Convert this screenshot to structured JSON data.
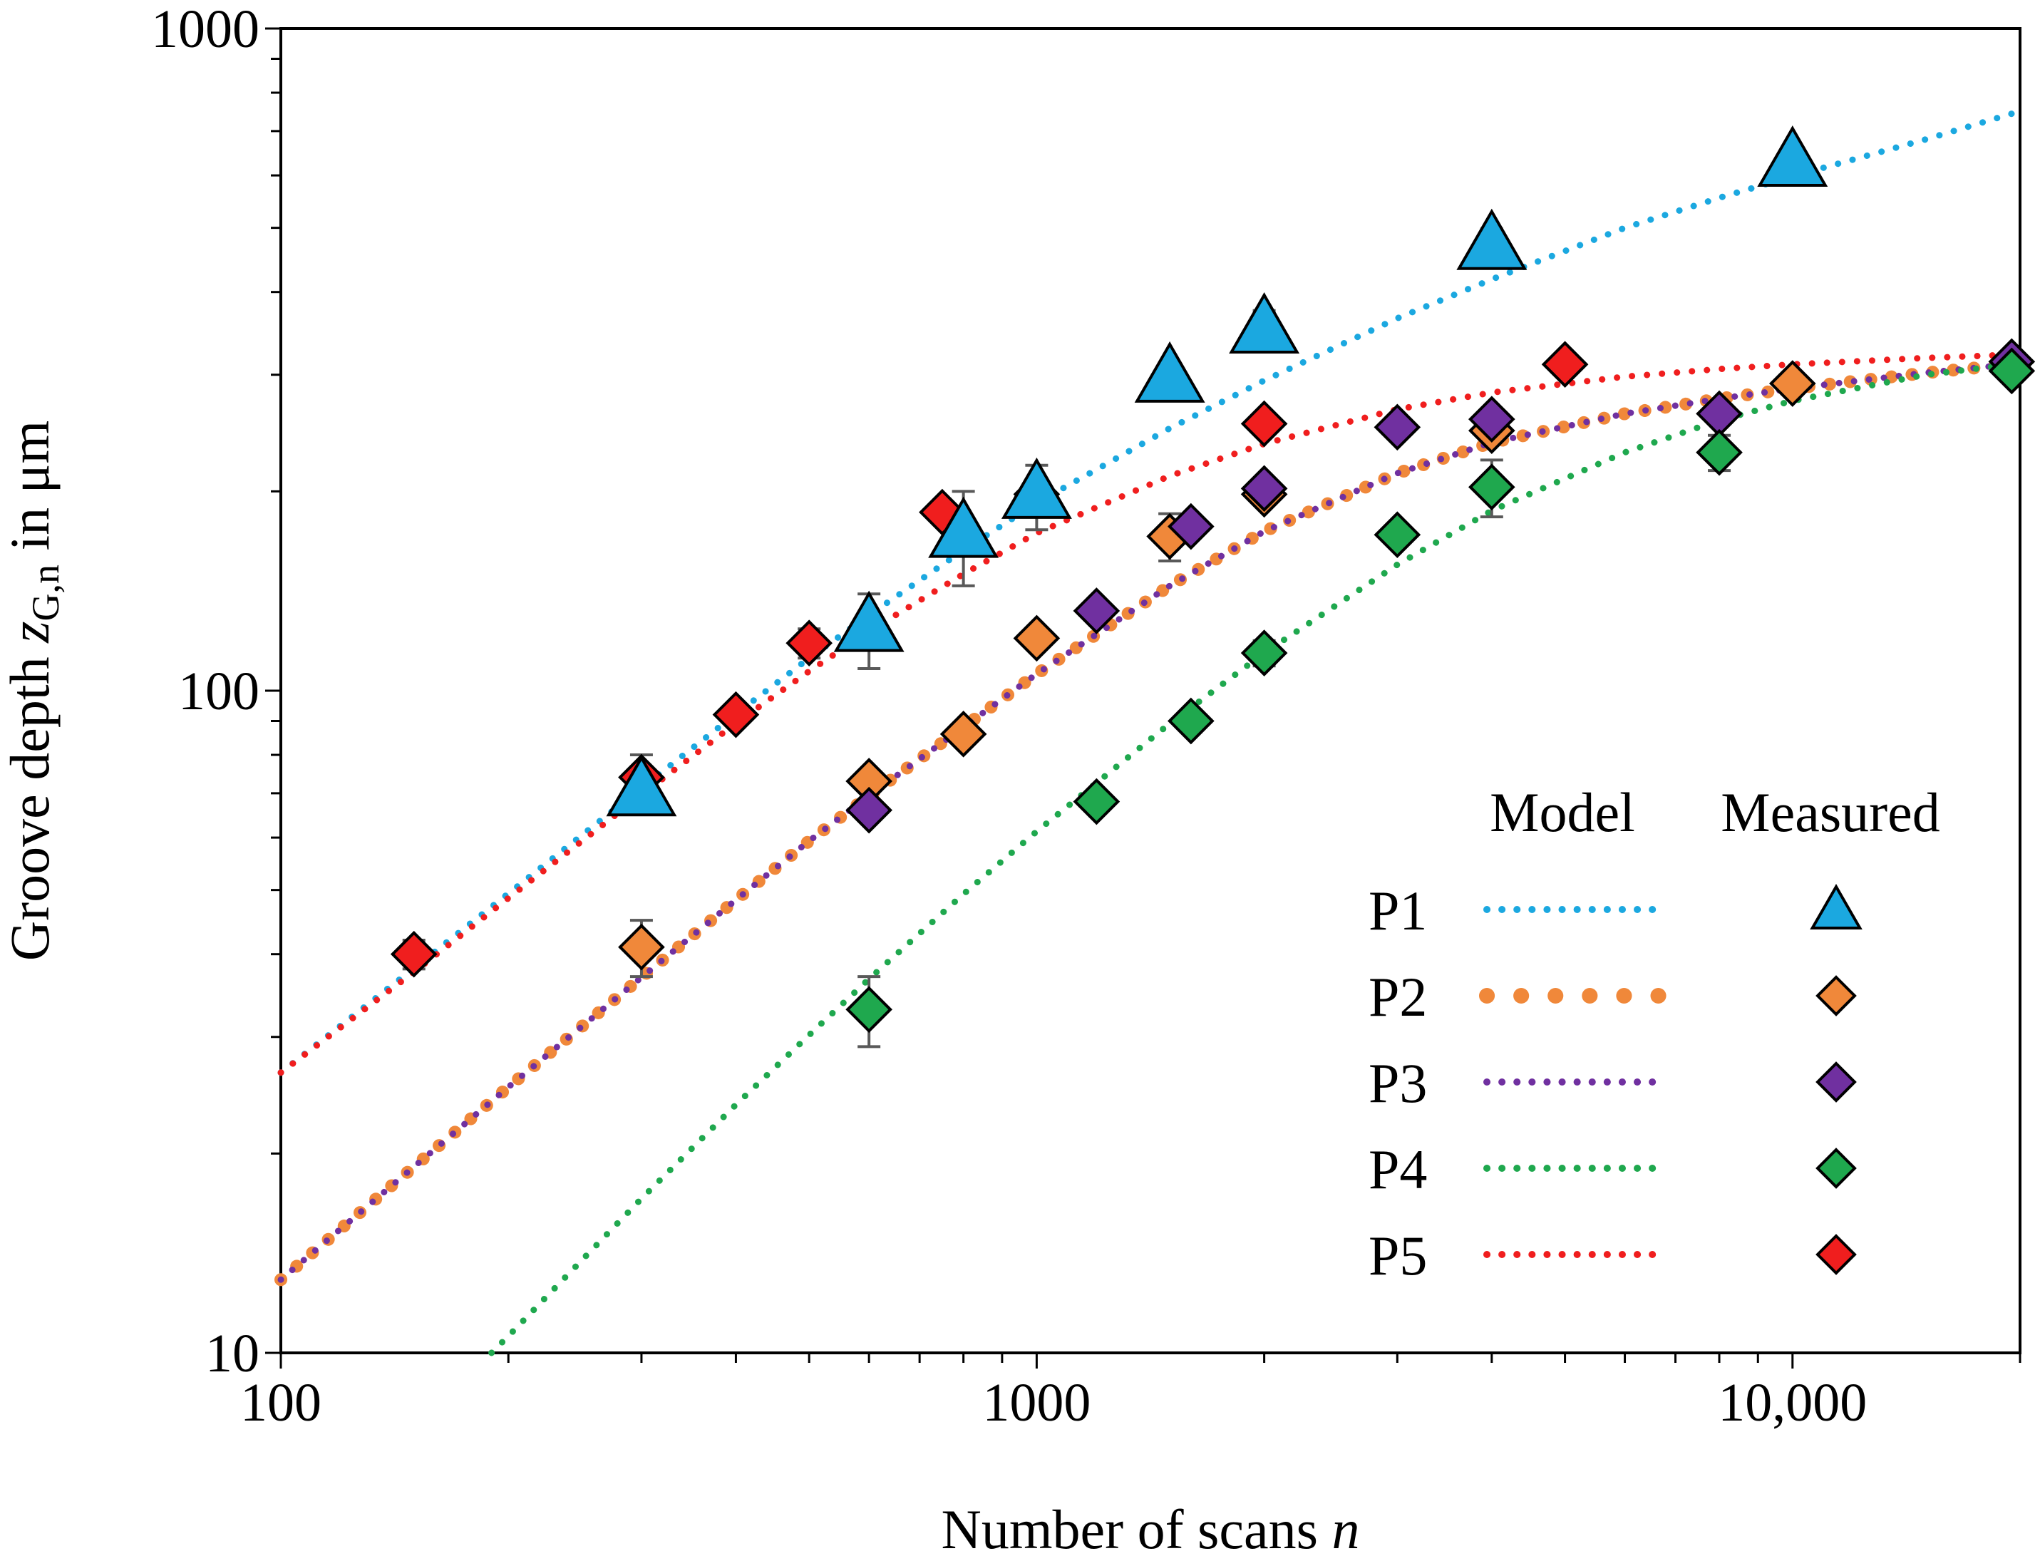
{
  "chart_data": {
    "type": "scatter",
    "title": "",
    "xlabel": "Number of scans n",
    "ylabel": "Groove depth z_G,n in μm",
    "xlabel_parts": {
      "text": "Number of scans ",
      "var": "n"
    },
    "ylabel_parts": {
      "text": "Groove depth ",
      "var": "z",
      "sub": "G,n",
      "unit": " in μm"
    },
    "x_scale": "log",
    "y_scale": "log",
    "xlim": [
      100,
      20000
    ],
    "ylim": [
      10,
      1000
    ],
    "x_ticks": [
      {
        "value": 100,
        "label": "100"
      },
      {
        "value": 1000,
        "label": "1000"
      },
      {
        "value": 10000,
        "label": "10,000"
      }
    ],
    "y_ticks": [
      {
        "value": 10,
        "label": "10"
      },
      {
        "value": 100,
        "label": "100"
      },
      {
        "value": 1000,
        "label": "1000"
      }
    ],
    "grid": false,
    "legend": {
      "placement": "bottom-right",
      "model_header": "Model",
      "measured_header": "Measured"
    },
    "series": [
      {
        "name": "P1",
        "color": "#1BA8E0",
        "marker": "triangle",
        "model_dot": "small",
        "model": [
          [
            100,
            26.5
          ],
          [
            150,
            38.1
          ],
          [
            200,
            49.4
          ],
          [
            300,
            71.3
          ],
          [
            400,
            92.2
          ],
          [
            500,
            112
          ],
          [
            600,
            130
          ],
          [
            800,
            163
          ],
          [
            1000,
            192
          ],
          [
            1500,
            249
          ],
          [
            2000,
            294
          ],
          [
            3000,
            365
          ],
          [
            4000,
            418
          ],
          [
            6000,
            500
          ],
          [
            8000,
            555
          ],
          [
            10000,
            598
          ],
          [
            15000,
            680
          ],
          [
            20000,
            750
          ]
        ],
        "measured": [
          {
            "x": 300,
            "y": 70,
            "err": 0
          },
          {
            "x": 600,
            "y": 124,
            "err": 16
          },
          {
            "x": 800,
            "y": 172,
            "err": 28
          },
          {
            "x": 1000,
            "y": 197,
            "err": 22
          },
          {
            "x": 1500,
            "y": 295,
            "err": 0
          },
          {
            "x": 2000,
            "y": 350,
            "err": 25
          },
          {
            "x": 4000,
            "y": 468,
            "err": 30
          },
          {
            "x": 10000,
            "y": 625,
            "err": 0
          }
        ]
      },
      {
        "name": "P2",
        "color": "#F0883A",
        "marker": "diamond",
        "model_dot": "large",
        "model": [
          [
            100,
            12.9
          ],
          [
            150,
            19.1
          ],
          [
            200,
            25.2
          ],
          [
            300,
            36.9
          ],
          [
            400,
            48.3
          ],
          [
            500,
            59.3
          ],
          [
            600,
            69.4
          ],
          [
            800,
            88.1
          ],
          [
            1000,
            106
          ],
          [
            1500,
            144
          ],
          [
            2000,
            174
          ],
          [
            3000,
            213
          ],
          [
            4000,
            237
          ],
          [
            6000,
            262
          ],
          [
            8000,
            276
          ],
          [
            10000,
            286
          ],
          [
            15000,
            302
          ],
          [
            20000,
            312
          ]
        ],
        "measured": [
          {
            "x": 300,
            "y": 41,
            "err": 4
          },
          {
            "x": 600,
            "y": 73,
            "err": 0
          },
          {
            "x": 800,
            "y": 86,
            "err": 0
          },
          {
            "x": 1000,
            "y": 120,
            "err": 0
          },
          {
            "x": 1500,
            "y": 171,
            "err": 14
          },
          {
            "x": 2000,
            "y": 198,
            "err": 0
          },
          {
            "x": 4000,
            "y": 247,
            "err": 0
          },
          {
            "x": 10000,
            "y": 291,
            "err": 0
          }
        ]
      },
      {
        "name": "P3",
        "color": "#7030A0",
        "marker": "diamond",
        "model_dot": "small",
        "model": [
          [
            100,
            12.9
          ],
          [
            150,
            19.1
          ],
          [
            200,
            25.2
          ],
          [
            300,
            36.9
          ],
          [
            400,
            48.3
          ],
          [
            500,
            59.3
          ],
          [
            600,
            69.4
          ],
          [
            800,
            88.1
          ],
          [
            1000,
            106
          ],
          [
            1500,
            144
          ],
          [
            2000,
            174
          ],
          [
            3000,
            213
          ],
          [
            4000,
            237
          ],
          [
            6000,
            262
          ],
          [
            8000,
            276
          ],
          [
            10000,
            286
          ],
          [
            15000,
            302
          ],
          [
            20000,
            312
          ]
        ],
        "measured": [
          {
            "x": 600,
            "y": 66,
            "err": 0
          },
          {
            "x": 1200,
            "y": 132,
            "err": 0
          },
          {
            "x": 1600,
            "y": 177,
            "err": 0
          },
          {
            "x": 2000,
            "y": 202,
            "err": 0
          },
          {
            "x": 3000,
            "y": 250,
            "err": 0
          },
          {
            "x": 4000,
            "y": 257,
            "err": 0
          },
          {
            "x": 8000,
            "y": 262,
            "err": 0
          },
          {
            "x": 19500,
            "y": 314,
            "err": 10
          }
        ]
      },
      {
        "name": "P4",
        "color": "#1FA84E",
        "marker": "diamond",
        "model_dot": "small",
        "model": [
          [
            190,
            10
          ],
          [
            200,
            10.6
          ],
          [
            300,
            17.1
          ],
          [
            400,
            23.7
          ],
          [
            500,
            30.2
          ],
          [
            600,
            36.7
          ],
          [
            800,
            49.3
          ],
          [
            1000,
            61.3
          ],
          [
            1500,
            89.2
          ],
          [
            2000,
            114
          ],
          [
            3000,
            155
          ],
          [
            4000,
            187
          ],
          [
            6000,
            229
          ],
          [
            8000,
            256
          ],
          [
            10000,
            274
          ],
          [
            15000,
            300
          ],
          [
            20000,
            312
          ]
        ],
        "measured": [
          {
            "x": 600,
            "y": 33,
            "err": 4
          },
          {
            "x": 1200,
            "y": 68,
            "err": 0
          },
          {
            "x": 1600,
            "y": 90,
            "err": 0
          },
          {
            "x": 2000,
            "y": 114,
            "err": 5
          },
          {
            "x": 3000,
            "y": 172,
            "err": 0
          },
          {
            "x": 4000,
            "y": 203,
            "err": 20
          },
          {
            "x": 8000,
            "y": 229,
            "err": 14
          },
          {
            "x": 19500,
            "y": 304,
            "err": 0
          }
        ]
      },
      {
        "name": "P5",
        "color": "#F01E1E",
        "marker": "diamond",
        "model_dot": "small",
        "model": [
          [
            100,
            26.5
          ],
          [
            150,
            37.6
          ],
          [
            200,
            48.6
          ],
          [
            300,
            69.6
          ],
          [
            400,
            89.3
          ],
          [
            500,
            107
          ],
          [
            600,
            123
          ],
          [
            800,
            150
          ],
          [
            1000,
            173
          ],
          [
            1500,
            211
          ],
          [
            2000,
            236
          ],
          [
            3000,
            266
          ],
          [
            4000,
            282
          ],
          [
            6000,
            298
          ],
          [
            8000,
            306
          ],
          [
            10000,
            311
          ],
          [
            15000,
            318
          ],
          [
            20000,
            322
          ]
        ],
        "measured": [
          {
            "x": 150,
            "y": 40,
            "err": 2
          },
          {
            "x": 300,
            "y": 74,
            "err": 6
          },
          {
            "x": 400,
            "y": 92,
            "err": 0
          },
          {
            "x": 500,
            "y": 118,
            "err": 6
          },
          {
            "x": 750,
            "y": 186,
            "err": 0
          },
          {
            "x": 1000,
            "y": 198,
            "err": 0
          },
          {
            "x": 2000,
            "y": 253,
            "err": 0
          },
          {
            "x": 5000,
            "y": 311,
            "err": 0
          }
        ]
      }
    ]
  }
}
